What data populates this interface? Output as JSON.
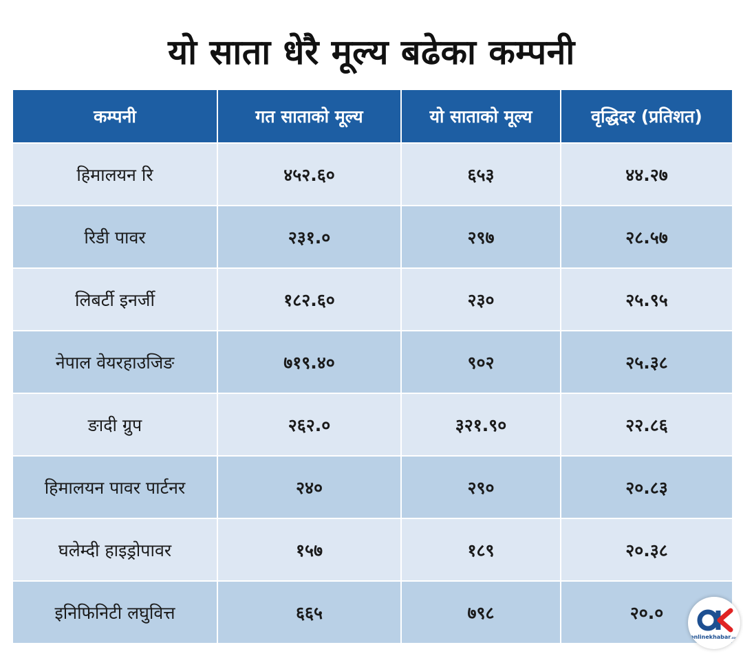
{
  "title": "यो साता धेरै मूल्य बढेका कम्पनी",
  "headers": [
    "कम्पनी",
    "गत साताको मूल्य",
    "यो साताको मूल्य",
    "वृद्धिदर (प्रतिशत)"
  ],
  "rows": [
    {
      "company": "हिमालयन रि",
      "last_week": "४५२.६०",
      "this_week": "६५३",
      "growth": "४४.२७"
    },
    {
      "company": "रिडी पावर",
      "last_week": "२३१.०",
      "this_week": "२९७",
      "growth": "२८.५७"
    },
    {
      "company": "लिबर्टी इनर्जी",
      "last_week": "१८२.६०",
      "this_week": "२३०",
      "growth": "२५.९५"
    },
    {
      "company": "नेपाल वेयरहाउजिङ",
      "last_week": "७१९.४०",
      "this_week": "९०२",
      "growth": "२५.३८"
    },
    {
      "company": "ङादी ग्रुप",
      "last_week": "२६२.०",
      "this_week": "३२१.९०",
      "growth": "२२.८६"
    },
    {
      "company": "हिमालयन पावर पार्टनर",
      "last_week": "२४०",
      "this_week": "२९०",
      "growth": "२०.८३"
    },
    {
      "company": "घलेम्दी हाइड्रोपावर",
      "last_week": "१५७",
      "this_week": "१८९",
      "growth": "२०.३८"
    },
    {
      "company": "इनिफिनिटी लघुवित्त",
      "last_week": "६६५",
      "this_week": "७९८",
      "growth": "२०.०"
    }
  ],
  "logo": {
    "mark": "OK",
    "text": "onlinekhabar",
    "suffix": ".com",
    "color_blue": "#1d4f91",
    "color_red": "#e02424"
  },
  "colors": {
    "header_bg": "#1d5ea3",
    "row_light": "#dde7f3",
    "row_dark": "#b9d0e6"
  }
}
